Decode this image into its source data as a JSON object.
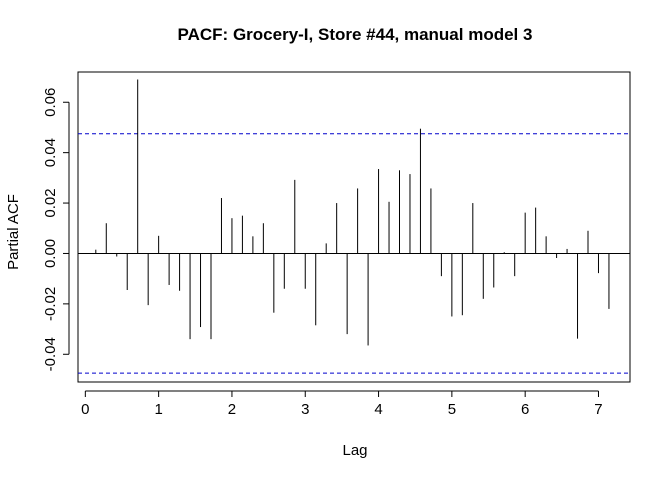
{
  "chart_data": {
    "type": "bar",
    "title": "PACF: Grocery-I, Store #44, manual model 3",
    "xlabel": "Lag",
    "ylabel": "Partial ACF",
    "xlim": [
      -0.1,
      7.43
    ],
    "ylim": [
      -0.051,
      0.072
    ],
    "x_ticks": [
      0,
      1,
      2,
      3,
      4,
      5,
      6,
      7
    ],
    "y_ticks": [
      -0.04,
      -0.02,
      0.0,
      0.02,
      0.04,
      0.06
    ],
    "y_tick_labels": [
      "-0.04",
      "-0.02",
      "0.00",
      "0.02",
      "0.04",
      "0.06"
    ],
    "confidence_bound": 0.0475,
    "bound_color": "#0000cc",
    "bar_color": "#000000",
    "lag_step": 0.1428571,
    "values": [
      0.0015,
      0.012,
      -0.0012,
      -0.0145,
      0.069,
      -0.0205,
      0.007,
      -0.0125,
      -0.0148,
      -0.034,
      -0.0292,
      -0.034,
      0.022,
      0.014,
      0.015,
      0.0068,
      0.012,
      -0.0235,
      -0.014,
      0.0292,
      -0.014,
      -0.0285,
      0.004,
      0.02,
      -0.032,
      0.0258,
      -0.0365,
      0.0335,
      0.0205,
      0.033,
      0.0315,
      0.0495,
      0.0258,
      -0.009,
      -0.025,
      -0.0245,
      0.02,
      -0.018,
      -0.0135,
      0.0005,
      -0.009,
      0.0162,
      0.0182,
      0.0068,
      -0.0018,
      0.0018,
      -0.0338,
      0.009,
      -0.0078,
      -0.022
    ]
  }
}
